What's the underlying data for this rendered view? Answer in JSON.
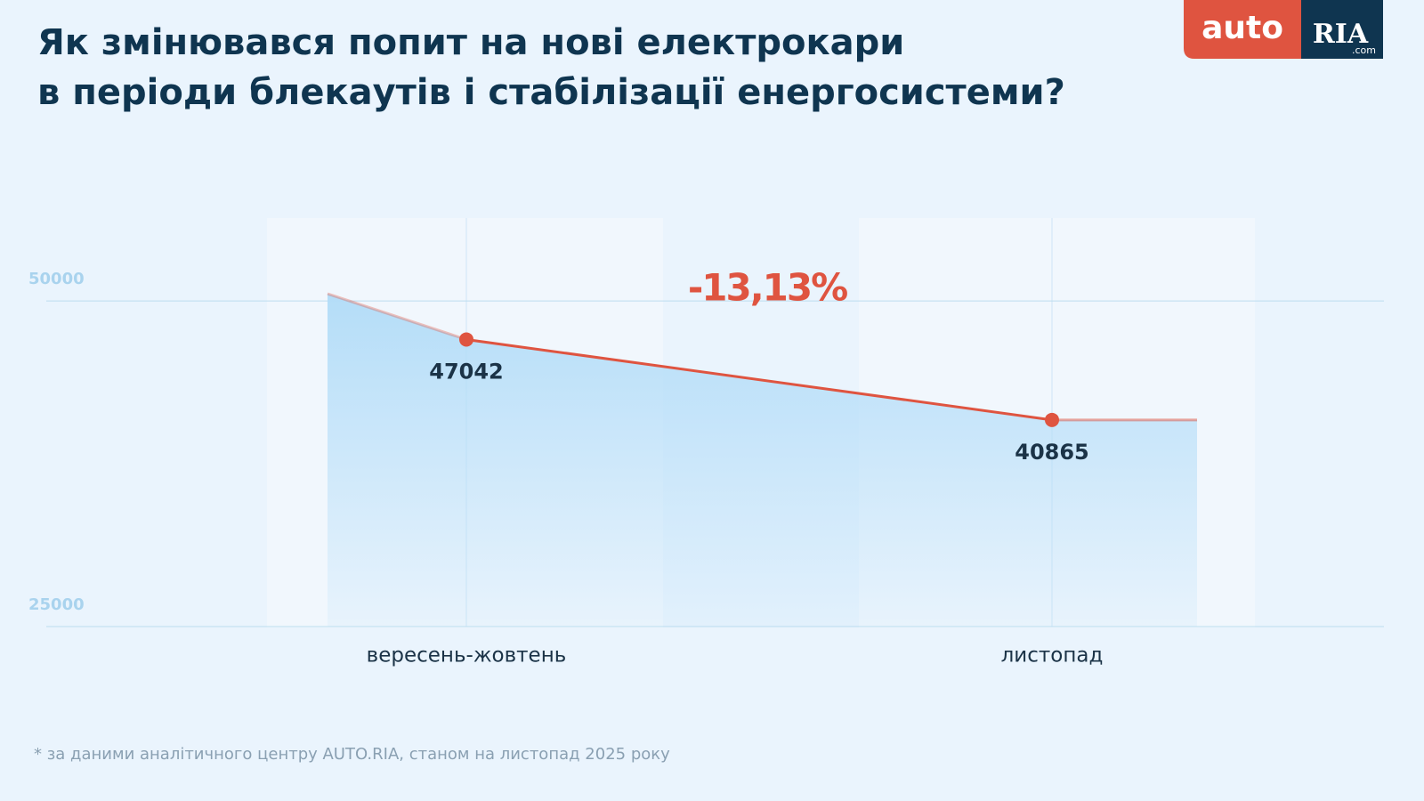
{
  "chart_data": {
    "type": "line",
    "title": [
      "Як змінювався попит на нові електрокари",
      "в періоди блекаутів і стабілізації енергосистеми?"
    ],
    "categories": [
      "вересень-жовтень",
      "листопад"
    ],
    "values": [
      47042,
      40865
    ],
    "color": "#df5440",
    "ylim": [
      25000,
      55000
    ],
    "yticks": [
      25000,
      50000
    ],
    "grid": true,
    "annotation": "-13,13%",
    "footnote": "* за даними аналітичного центру AUTO.RIA, станом на листопад 2025 року",
    "logo": {
      "left": "auto",
      "right": "RIA",
      "suffix": ".com"
    }
  }
}
